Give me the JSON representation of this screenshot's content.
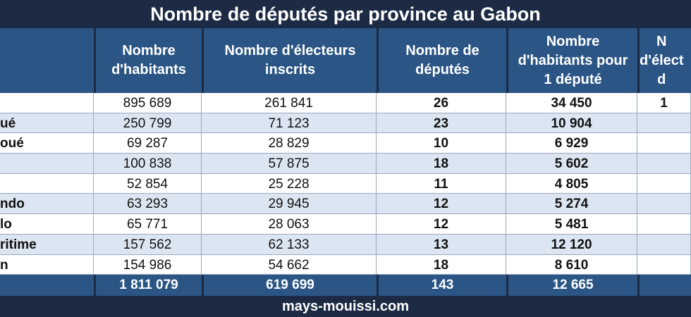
{
  "title": "Nombre de députés par province au Gabon",
  "headers": [
    "",
    "Nombre\nd'habitants",
    "Nombre d'électeurs\ninscrits",
    "Nombre de\ndéputés",
    "Nombre\nd'habitants pour\n1 député",
    "N\nd'élect\nd"
  ],
  "rows": [
    {
      "province": "",
      "habitants": "895 689",
      "electeurs": "261 841",
      "deputes": "26",
      "hab_par_depute": "34 450",
      "extra": "1"
    },
    {
      "province": "ué",
      "habitants": "250 799",
      "electeurs": "71 123",
      "deputes": "23",
      "hab_par_depute": "10 904",
      "extra": ""
    },
    {
      "province": "oué",
      "habitants": "69 287",
      "electeurs": "28 829",
      "deputes": "10",
      "hab_par_depute": "6 929",
      "extra": ""
    },
    {
      "province": "",
      "habitants": "100 838",
      "electeurs": "57 875",
      "deputes": "18",
      "hab_par_depute": "5 602",
      "extra": ""
    },
    {
      "province": "",
      "habitants": "52 854",
      "electeurs": "25 228",
      "deputes": "11",
      "hab_par_depute": "4 805",
      "extra": ""
    },
    {
      "province": "ndo",
      "habitants": "63 293",
      "electeurs": "29 945",
      "deputes": "12",
      "hab_par_depute": "5 274",
      "extra": ""
    },
    {
      "province": "lo",
      "habitants": "65 771",
      "electeurs": "28 063",
      "deputes": "12",
      "hab_par_depute": "5 481",
      "extra": ""
    },
    {
      "province": "ritime",
      "habitants": "157 562",
      "electeurs": "62 133",
      "deputes": "13",
      "hab_par_depute": "12 120",
      "extra": ""
    },
    {
      "province": "n",
      "habitants": "154 986",
      "electeurs": "54 662",
      "deputes": "18",
      "hab_par_depute": "8 610",
      "extra": ""
    }
  ],
  "total": {
    "province": "",
    "habitants": "1 811 079",
    "electeurs": "619 699",
    "deputes": "143",
    "hab_par_depute": "12 665",
    "extra": ""
  },
  "footer": "mays-mouissi.com"
}
